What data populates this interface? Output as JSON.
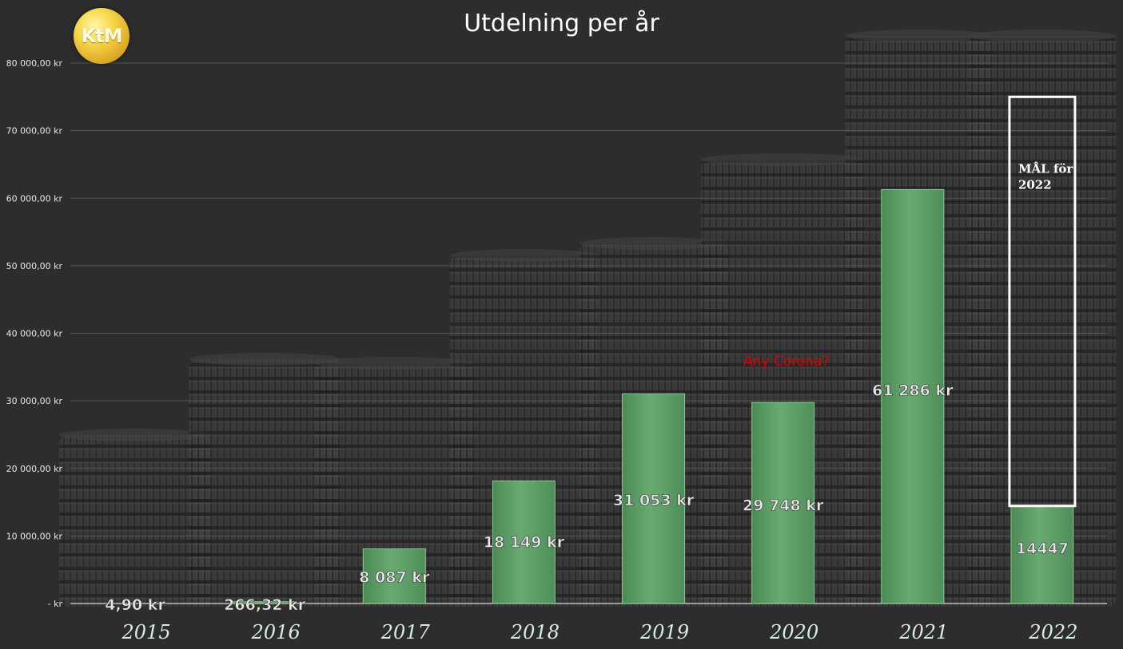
{
  "logo_text": "KtM",
  "chart_data": {
    "type": "bar",
    "title": "Utdelning per år",
    "categories": [
      "2015",
      "2016",
      "2017",
      "2018",
      "2019",
      "2020",
      "2021",
      "2022"
    ],
    "values": [
      4.9,
      266.32,
      8087,
      18149,
      31053,
      29748,
      61286,
      14447
    ],
    "data_labels": [
      "4,90 kr",
      "266,32 kr",
      "8 087 kr",
      "18 149 kr",
      "31 053 kr",
      "29 748 kr",
      "61 286 kr",
      "14447"
    ],
    "ylim": [
      0,
      80000
    ],
    "y_ticks": [
      0,
      10000,
      20000,
      30000,
      40000,
      50000,
      60000,
      70000,
      80000
    ],
    "y_tick_labels": [
      "-   kr",
      "10 000,00 kr",
      "20 000,00 kr",
      "30 000,00 kr",
      "40 000,00 kr",
      "50 000,00 kr",
      "60 000,00 kr",
      "70 000,00 kr",
      "80 000,00 kr"
    ],
    "grid": true,
    "bar_color": "#5f9f68",
    "goal": {
      "category": "2022",
      "value": 75000,
      "label": "MÅL för 2022",
      "color": "#ffffff"
    },
    "annotation": {
      "category": "2020",
      "text": "Any Corona?",
      "color": "#e00000"
    }
  }
}
